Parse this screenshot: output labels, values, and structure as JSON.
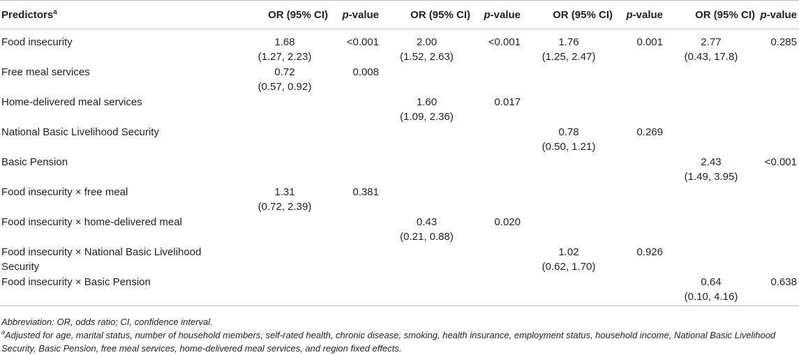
{
  "table": {
    "headers": {
      "predictors": "Predictors",
      "predictors_sup": "a",
      "or_label": "OR (95% CI)",
      "p_label_italic": "p",
      "p_label_rest": "-value"
    },
    "rows": [
      {
        "label": "Food insecurity",
        "cells": [
          {
            "or": "1.68",
            "ci": "(1.27, 2.23)",
            "p": "<0.001"
          },
          {
            "or": "2.00",
            "ci": "(1.52, 2.63)",
            "p": "<0.001"
          },
          {
            "or": "1.76",
            "ci": "(1.25, 2.47)",
            "p": "0.001"
          },
          {
            "or": "2.77",
            "ci": "(0.43, 17.8)",
            "p": "0.285"
          }
        ]
      },
      {
        "label": "Free meal services",
        "cells": [
          {
            "or": "0.72",
            "ci": "(0.57, 0.92)",
            "p": "0.008"
          },
          {
            "or": "",
            "ci": "",
            "p": ""
          },
          {
            "or": "",
            "ci": "",
            "p": ""
          },
          {
            "or": "",
            "ci": "",
            "p": ""
          }
        ]
      },
      {
        "label": "Home-delivered meal services",
        "cells": [
          {
            "or": "",
            "ci": "",
            "p": ""
          },
          {
            "or": "1.60",
            "ci": "(1.09, 2.36)",
            "p": "0.017"
          },
          {
            "or": "",
            "ci": "",
            "p": ""
          },
          {
            "or": "",
            "ci": "",
            "p": ""
          }
        ]
      },
      {
        "label": "National Basic Livelihood Security",
        "cells": [
          {
            "or": "",
            "ci": "",
            "p": ""
          },
          {
            "or": "",
            "ci": "",
            "p": ""
          },
          {
            "or": "0.78",
            "ci": "(0.50, 1.21)",
            "p": "0.269"
          },
          {
            "or": "",
            "ci": "",
            "p": ""
          }
        ]
      },
      {
        "label": "Basic Pension",
        "cells": [
          {
            "or": "",
            "ci": "",
            "p": ""
          },
          {
            "or": "",
            "ci": "",
            "p": ""
          },
          {
            "or": "",
            "ci": "",
            "p": ""
          },
          {
            "or": "2.43",
            "ci": "(1.49, 3.95)",
            "p": "<0.001"
          }
        ]
      },
      {
        "label": "Food insecurity × free meal",
        "cells": [
          {
            "or": "1.31",
            "ci": "(0.72, 2.39)",
            "p": "0.381"
          },
          {
            "or": "",
            "ci": "",
            "p": ""
          },
          {
            "or": "",
            "ci": "",
            "p": ""
          },
          {
            "or": "",
            "ci": "",
            "p": ""
          }
        ]
      },
      {
        "label": "Food insecurity × home-delivered meal",
        "cells": [
          {
            "or": "",
            "ci": "",
            "p": ""
          },
          {
            "or": "0.43",
            "ci": "(0.21, 0.88)",
            "p": "0.020"
          },
          {
            "or": "",
            "ci": "",
            "p": ""
          },
          {
            "or": "",
            "ci": "",
            "p": ""
          }
        ]
      },
      {
        "label": "Food insecurity × National Basic Livelihood Security",
        "cells": [
          {
            "or": "",
            "ci": "",
            "p": ""
          },
          {
            "or": "",
            "ci": "",
            "p": ""
          },
          {
            "or": "1.02",
            "ci": "(0.62, 1.70)",
            "p": "0.926"
          },
          {
            "or": "",
            "ci": "",
            "p": ""
          }
        ]
      },
      {
        "label": "Food insecurity × Basic Pension",
        "cells": [
          {
            "or": "",
            "ci": "",
            "p": ""
          },
          {
            "or": "",
            "ci": "",
            "p": ""
          },
          {
            "or": "",
            "ci": "",
            "p": ""
          },
          {
            "or": "0.64",
            "ci": "(0.10, 4.16)",
            "p": "0.638"
          }
        ]
      }
    ]
  },
  "notes": {
    "abbreviation": "Abbreviation: OR, odds ratio; CI, confidence interval.",
    "footnote_mark": "a",
    "footnote": "Adjusted for age, marital status, number of household members, self-rated health, chronic disease, smoking, health insurance, employment status, household income, National Basic Livelihood Security, Basic Pension, free meal services, home-delivered meal services, and region fixed effects."
  }
}
